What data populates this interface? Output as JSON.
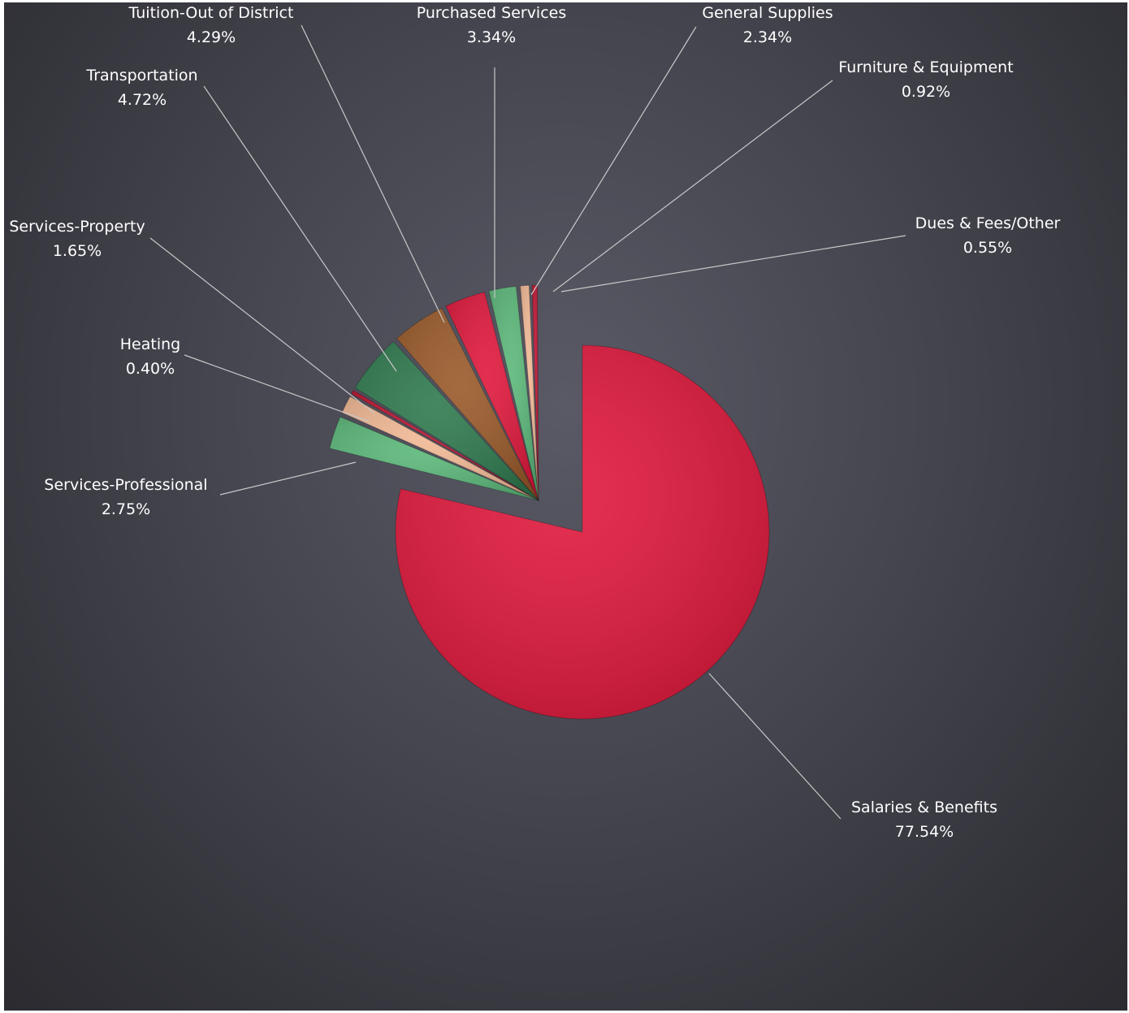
{
  "chart_data": {
    "type": "pie",
    "title": "",
    "slices": [
      {
        "label": "Salaries & Benefits",
        "value": 77.54,
        "display": "77.54%",
        "color": "#e0183c"
      },
      {
        "label": "Services-Professional",
        "value": 2.75,
        "display": "2.75%",
        "color": "#5cb87a"
      },
      {
        "label": "Services-Property",
        "value": 1.65,
        "display": "1.65%",
        "color": "#f2b995"
      },
      {
        "label": "Heating",
        "value": 0.4,
        "display": "0.40%",
        "color": "#c01634"
      },
      {
        "label": "Transportation",
        "value": 4.72,
        "display": "4.72%",
        "color": "#2f7a4f"
      },
      {
        "label": "Tuition-Out of District",
        "value": 4.29,
        "display": "4.29%",
        "color": "#9a5a2a"
      },
      {
        "label": "Purchased Services",
        "value": 3.34,
        "display": "3.34%",
        "color": "#e0183c"
      },
      {
        "label": "General Supplies",
        "value": 2.34,
        "display": "2.34%",
        "color": "#5cb87a"
      },
      {
        "label": "Furniture & Equipment",
        "value": 0.92,
        "display": "0.92%",
        "color": "#f2b995"
      },
      {
        "label": "Dues & Fees/Other",
        "value": 0.55,
        "display": "0.55%",
        "color": "#c01634"
      }
    ]
  }
}
